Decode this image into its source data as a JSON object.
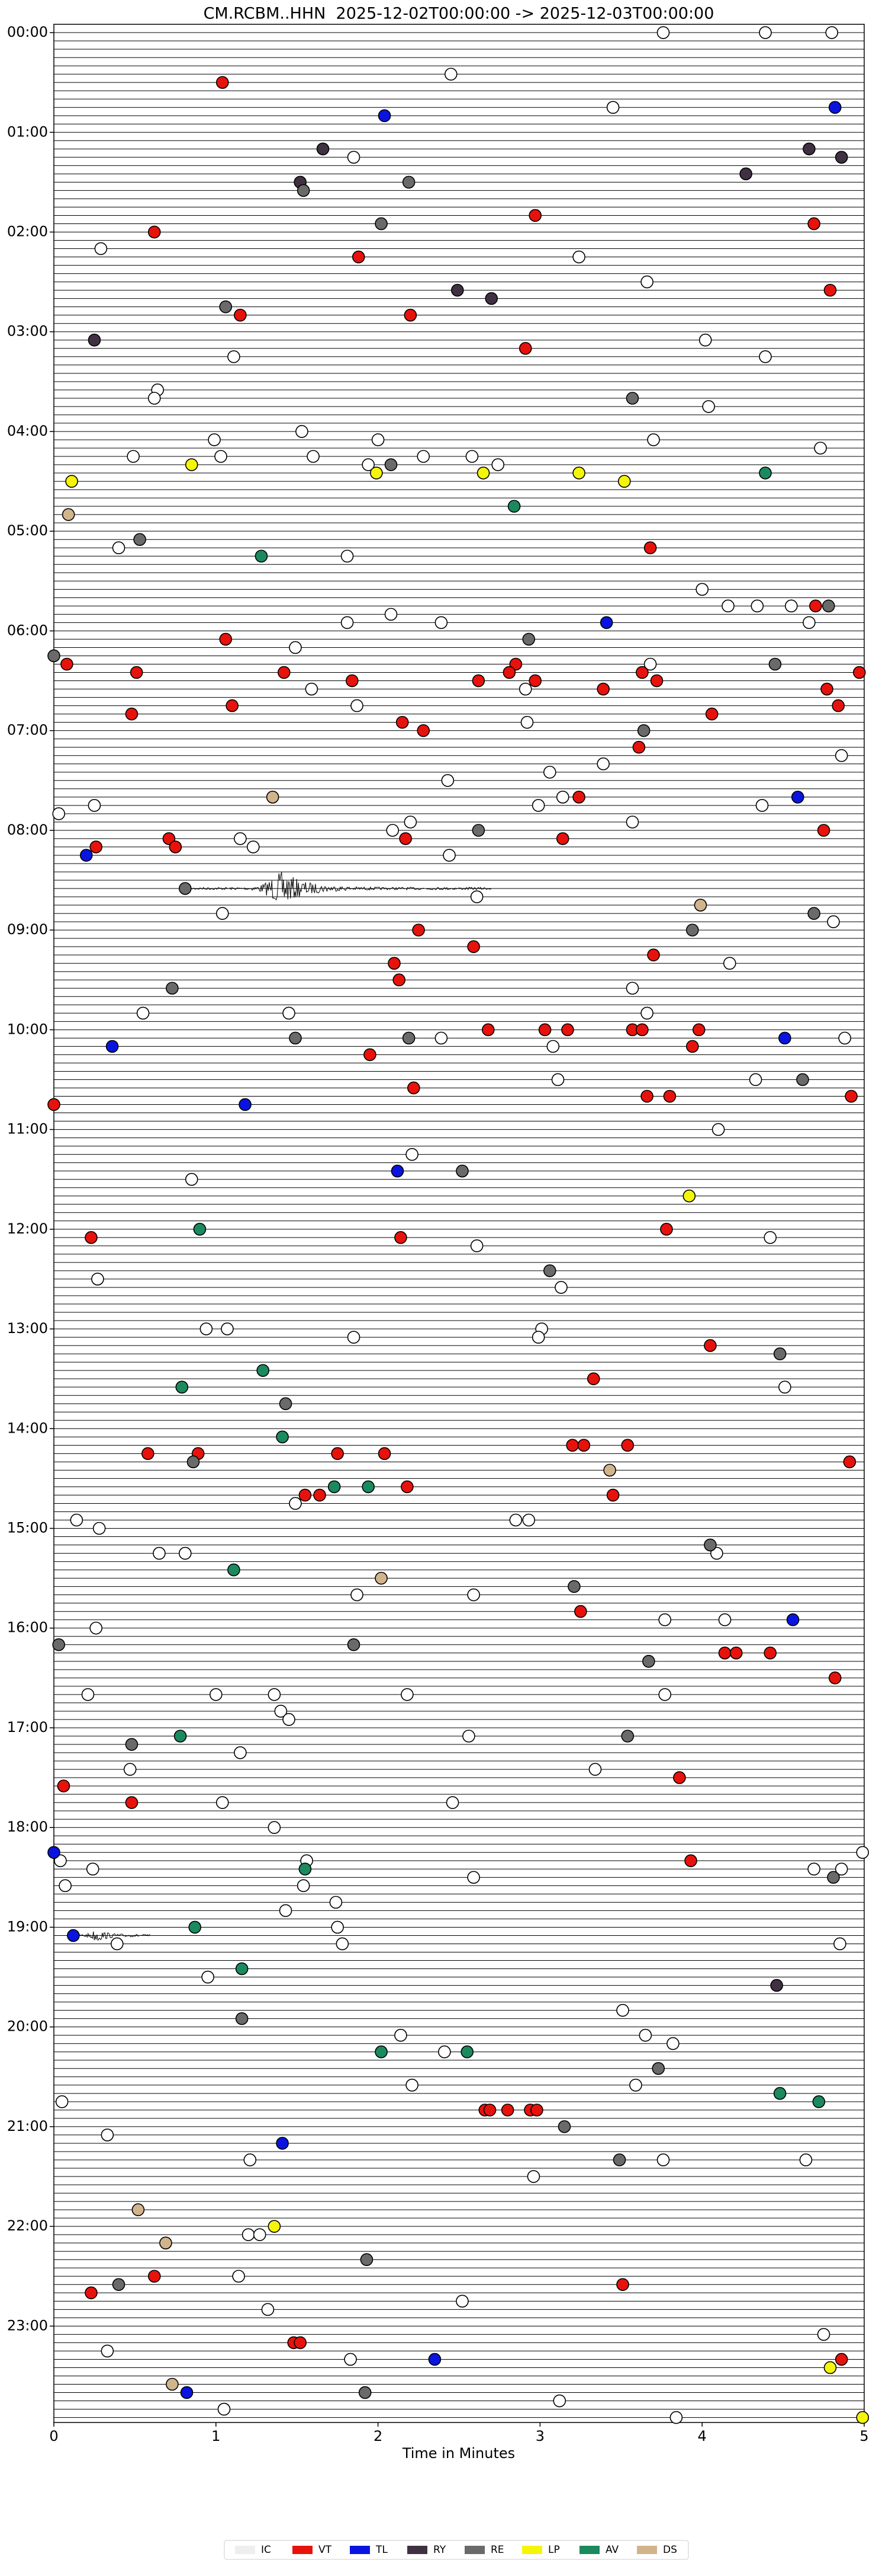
{
  "chart_data": {
    "type": "scatter",
    "title": "CM.RCBM..HHN  2025-12-02T00:00:00 -> 2025-12-03T00:00:00",
    "x_label": "Time in Minutes",
    "xlim": [
      0,
      5
    ],
    "xticks": [
      0,
      1,
      2,
      3,
      4,
      5
    ],
    "ylim": [
      -5,
      1438
    ],
    "y_inverted": true,
    "yticks": [
      {
        "value": 0,
        "label": "00:00"
      },
      {
        "value": 60,
        "label": "01:00"
      },
      {
        "value": 120,
        "label": "02:00"
      },
      {
        "value": 180,
        "label": "03:00"
      },
      {
        "value": 240,
        "label": "04:00"
      },
      {
        "value": 300,
        "label": "05:00"
      },
      {
        "value": 360,
        "label": "06:00"
      },
      {
        "value": 420,
        "label": "07:00"
      },
      {
        "value": 480,
        "label": "08:00"
      },
      {
        "value": 540,
        "label": "09:00"
      },
      {
        "value": 600,
        "label": "10:00"
      },
      {
        "value": 660,
        "label": "11:00"
      },
      {
        "value": 720,
        "label": "12:00"
      },
      {
        "value": 780,
        "label": "13:00"
      },
      {
        "value": 840,
        "label": "14:00"
      },
      {
        "value": 900,
        "label": "15:00"
      },
      {
        "value": 960,
        "label": "16:00"
      },
      {
        "value": 1020,
        "label": "17:00"
      },
      {
        "value": 1080,
        "label": "18:00"
      },
      {
        "value": 1140,
        "label": "19:00"
      },
      {
        "value": 1200,
        "label": "20:00"
      },
      {
        "value": 1260,
        "label": "21:00"
      },
      {
        "value": 1320,
        "label": "22:00"
      },
      {
        "value": 1380,
        "label": "23:00"
      }
    ],
    "legend": "bottom",
    "series": [
      {
        "name": "IC",
        "color": "#eeeeee",
        "x": [
          3.76,
          4.39,
          4.8,
          2.45,
          3.45,
          1.85,
          0.29,
          3.24,
          3.66,
          4.02,
          1.11,
          4.39,
          0.64,
          0.62,
          4.04,
          1.53,
          0.99,
          2.0,
          3.7,
          4.73,
          0.49,
          1.03,
          1.6,
          2.28,
          2.58,
          1.94,
          2.74,
          0.4,
          1.81,
          4.0,
          4.16,
          4.34,
          4.55,
          2.08,
          1.81,
          2.39,
          4.66,
          1.49,
          3.68,
          1.59,
          2.91,
          1.87,
          2.92,
          4.86,
          3.39,
          3.06,
          2.43,
          3.14,
          0.25,
          2.99,
          4.37,
          0.03,
          2.2,
          3.57,
          2.09,
          1.15,
          1.23,
          2.44,
          2.61,
          1.04,
          4.81,
          4.17,
          3.57,
          0.55,
          1.45,
          3.66,
          2.39,
          4.88,
          3.08,
          3.11,
          4.33,
          4.1,
          2.21,
          0.85,
          4.42,
          2.61,
          0.27,
          3.13,
          0.94,
          1.07,
          3.01,
          1.85,
          2.99,
          4.51,
          1.49,
          0.14,
          2.85,
          2.93,
          0.28,
          0.65,
          0.81,
          4.09,
          1.87,
          2.59,
          3.77,
          4.14,
          0.26,
          0.21,
          1.0,
          1.36,
          2.18,
          3.77,
          1.4,
          1.45,
          2.56,
          1.15,
          0.47,
          3.34,
          1.04,
          2.46,
          1.36,
          4.99,
          0.04,
          1.56,
          0.24,
          4.69,
          4.86,
          2.59,
          0.07,
          1.54,
          1.74,
          1.43,
          1.75,
          0.39,
          1.78,
          4.85,
          0.95,
          3.51,
          2.14,
          3.65,
          3.82,
          2.41,
          2.21,
          3.59,
          0.05,
          0.33,
          1.21,
          3.76,
          4.64,
          2.96,
          1.2,
          1.27,
          1.14,
          2.52,
          1.32,
          4.75,
          0.33,
          1.83,
          3.12,
          1.05,
          3.84
        ],
        "values": [
          0,
          0,
          0,
          25,
          45,
          75,
          130,
          135,
          150,
          185,
          195,
          195,
          215,
          220,
          225,
          240,
          245,
          245,
          245,
          250,
          255,
          255,
          255,
          255,
          255,
          260,
          260,
          310,
          315,
          335,
          345,
          345,
          345,
          350,
          355,
          355,
          355,
          370,
          380,
          395,
          395,
          405,
          415,
          435,
          440,
          445,
          450,
          460,
          465,
          465,
          465,
          470,
          475,
          475,
          480,
          485,
          490,
          495,
          520,
          530,
          535,
          560,
          575,
          590,
          590,
          590,
          605,
          605,
          610,
          630,
          630,
          660,
          675,
          690,
          725,
          730,
          750,
          755,
          780,
          780,
          780,
          785,
          785,
          815,
          885,
          895,
          895,
          895,
          900,
          915,
          915,
          915,
          940,
          940,
          955,
          955,
          960,
          1000,
          1000,
          1000,
          1000,
          1000,
          1010,
          1015,
          1025,
          1035,
          1045,
          1045,
          1065,
          1065,
          1080,
          1095,
          1100,
          1100,
          1105,
          1105,
          1105,
          1110,
          1115,
          1115,
          1125,
          1130,
          1140,
          1150,
          1150,
          1150,
          1170,
          1190,
          1205,
          1205,
          1210,
          1215,
          1235,
          1235,
          1245,
          1265,
          1280,
          1280,
          1280,
          1290,
          1325,
          1325,
          1350,
          1365,
          1370,
          1385,
          1395,
          1400,
          1425,
          1430,
          1435
        ]
      },
      {
        "name": "VT",
        "color": "#e8120c",
        "x": [
          1.04,
          2.97,
          4.69,
          0.62,
          1.88,
          4.79,
          1.15,
          2.2,
          2.91,
          3.68,
          4.7,
          1.06,
          0.08,
          2.85,
          0.51,
          1.42,
          2.81,
          3.63,
          4.97,
          1.84,
          2.62,
          2.97,
          3.72,
          3.39,
          4.77,
          1.1,
          4.84,
          0.48,
          4.06,
          2.15,
          2.28,
          3.61,
          3.24,
          4.75,
          0.71,
          2.17,
          3.14,
          0.26,
          0.75,
          2.25,
          2.59,
          3.7,
          2.1,
          2.13,
          2.68,
          3.03,
          3.17,
          3.57,
          3.63,
          3.98,
          3.94,
          1.95,
          2.22,
          3.66,
          3.8,
          4.92,
          0,
          0.23,
          2.14,
          3.78,
          4.05,
          3.33,
          3.2,
          3.27,
          3.54,
          0.58,
          0.89,
          1.75,
          2.04,
          4.91,
          2.18,
          1.55,
          1.64,
          3.45,
          3.25,
          4.14,
          4.21,
          4.42,
          4.82,
          3.86,
          0.06,
          0.48,
          3.93,
          2.66,
          2.69,
          2.8,
          2.94,
          2.98,
          0.62,
          3.51,
          0.23,
          1.48,
          1.52,
          4.86
        ],
        "values": [
          30,
          110,
          115,
          120,
          135,
          155,
          170,
          170,
          190,
          310,
          345,
          365,
          380,
          380,
          385,
          385,
          385,
          385,
          385,
          390,
          390,
          390,
          390,
          395,
          395,
          405,
          405,
          410,
          410,
          415,
          420,
          430,
          460,
          480,
          485,
          485,
          485,
          490,
          490,
          540,
          550,
          555,
          560,
          570,
          600,
          600,
          600,
          600,
          600,
          600,
          610,
          615,
          635,
          640,
          640,
          640,
          645,
          725,
          725,
          720,
          790,
          810,
          850,
          850,
          850,
          855,
          855,
          855,
          855,
          860,
          875,
          880,
          880,
          880,
          950,
          975,
          975,
          975,
          990,
          1050,
          1055,
          1065,
          1100,
          1250,
          1250,
          1250,
          1250,
          1250,
          1350,
          1355,
          1360,
          1390,
          1390,
          1400
        ]
      },
      {
        "name": "TL",
        "color": "#0a14e0",
        "x": [
          4.82,
          2.04,
          3.41,
          4.59,
          0.2,
          4.51,
          0.36,
          1.18,
          2.12,
          4.56,
          0,
          0.12,
          1.41,
          2.35,
          0.82
        ],
        "values": [
          45,
          50,
          355,
          460,
          495,
          605,
          610,
          645,
          685,
          955,
          1095,
          1145,
          1270,
          1400,
          1420
        ]
      },
      {
        "name": "RY",
        "color": "#3f3142",
        "x": [
          4.66,
          1.66,
          4.86,
          4.27,
          1.52,
          2.49,
          2.7,
          0.25,
          4.46
        ],
        "values": [
          70,
          70,
          75,
          85,
          90,
          155,
          160,
          185,
          1175
        ]
      },
      {
        "name": "RE",
        "color": "#6a6a6a",
        "x": [
          1.54,
          2.19,
          2.02,
          1.06,
          3.57,
          2.08,
          0.53,
          2.93,
          0,
          4.45,
          3.64,
          2.62,
          0.81,
          4.69,
          3.94,
          0.73,
          1.49,
          2.19,
          4.62,
          2.52,
          3.06,
          4.48,
          1.43,
          0.86,
          4.05,
          3.21,
          0.03,
          1.85,
          3.67,
          3.54,
          0.48,
          4.81,
          3.73,
          3.15,
          3.49,
          1.93,
          0.4,
          1.92,
          1.16,
          4.78
        ],
        "values": [
          95,
          90,
          115,
          165,
          220,
          260,
          305,
          365,
          375,
          380,
          420,
          480,
          515,
          530,
          540,
          575,
          605,
          605,
          630,
          685,
          745,
          795,
          825,
          860,
          910,
          935,
          970,
          970,
          980,
          1025,
          1030,
          1110,
          1225,
          1260,
          1280,
          1340,
          1355,
          1420,
          1195,
          345
        ]
      },
      {
        "name": "LP",
        "color": "#f5f50a",
        "x": [
          0.85,
          1.99,
          2.65,
          3.24,
          0.11,
          3.52,
          3.92,
          1.36,
          4.79,
          4.99
        ],
        "values": [
          260,
          265,
          265,
          265,
          270,
          270,
          700,
          1320,
          1405,
          1435
        ]
      },
      {
        "name": "AV",
        "color": "#1b8a5e",
        "x": [
          4.39,
          2.84,
          1.28,
          0.9,
          1.29,
          0.79,
          1.41,
          1.73,
          1.94,
          1.11,
          0.78,
          1.55,
          0.87,
          1.16,
          2.02,
          2.55,
          4.48,
          4.72
        ],
        "values": [
          265,
          285,
          315,
          720,
          805,
          815,
          845,
          875,
          875,
          925,
          1025,
          1105,
          1140,
          1165,
          1215,
          1215,
          1240,
          1245
        ]
      },
      {
        "name": "DS",
        "color": "#d2b48c",
        "x": [
          0.09,
          1.35,
          3.99,
          2.02,
          3.43,
          0.52,
          0.69,
          0.73
        ],
        "values": [
          290,
          460,
          525,
          930,
          865,
          1310,
          1330,
          1415
        ]
      }
    ]
  }
}
